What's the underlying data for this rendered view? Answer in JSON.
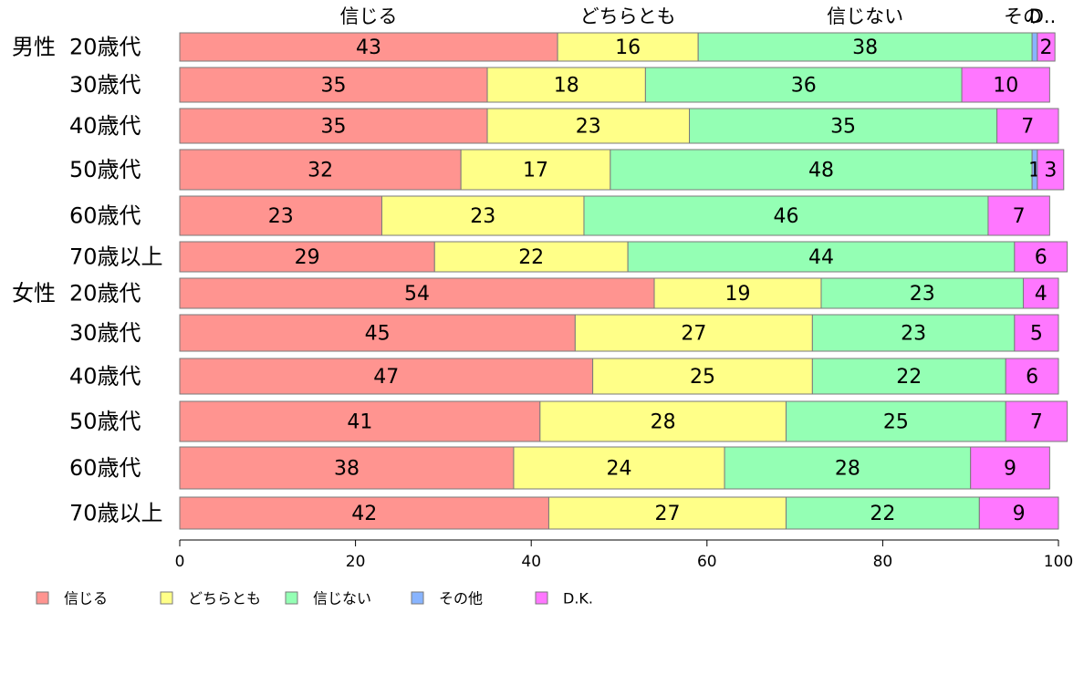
{
  "chart_data": {
    "type": "bar",
    "orientation": "horizontal",
    "stacked": true,
    "xlim": [
      0,
      100
    ],
    "x_ticks": [
      0,
      20,
      40,
      60,
      80,
      100
    ],
    "grid": false,
    "legend_position": "bottom-left",
    "categories": [
      {
        "group": "男性",
        "label": "20歳代"
      },
      {
        "group": "",
        "label": "30歳代"
      },
      {
        "group": "",
        "label": "40歳代"
      },
      {
        "group": "",
        "label": "50歳代"
      },
      {
        "group": "",
        "label": "60歳代"
      },
      {
        "group": "",
        "label": "70歳以上"
      },
      {
        "group": "女性",
        "label": "20歳代"
      },
      {
        "group": "",
        "label": "30歳代"
      },
      {
        "group": "",
        "label": "40歳代"
      },
      {
        "group": "",
        "label": "50歳代"
      },
      {
        "group": "",
        "label": "60歳代"
      },
      {
        "group": "",
        "label": "70歳以上"
      }
    ],
    "top_labels": [
      "信じる",
      "どちらとも",
      "信じない",
      "その",
      "D.."
    ],
    "series": [
      {
        "name": "信じる",
        "color": "#ff9490",
        "values": [
          43,
          35,
          35,
          32,
          23,
          29,
          54,
          45,
          47,
          41,
          38,
          42
        ]
      },
      {
        "name": "どちらとも",
        "color": "#ffff88",
        "values": [
          16,
          18,
          23,
          17,
          23,
          22,
          19,
          27,
          25,
          28,
          24,
          27
        ]
      },
      {
        "name": "信じない",
        "color": "#94ffb4",
        "values": [
          38,
          36,
          35,
          48,
          46,
          44,
          23,
          23,
          22,
          25,
          28,
          22
        ]
      },
      {
        "name": "その他",
        "color": "#88b4ff",
        "values": [
          0.6,
          0,
          0,
          0.6,
          0,
          0,
          0,
          0,
          0,
          0,
          0,
          0
        ],
        "data_labels": [
          "",
          "",
          "",
          "1",
          "",
          "",
          "",
          "",
          "",
          "",
          "",
          ""
        ]
      },
      {
        "name": "D.K.",
        "color": "#ff77ff",
        "values": [
          2,
          10,
          7,
          3,
          7,
          6,
          4,
          5,
          6,
          7,
          9,
          9
        ]
      }
    ]
  }
}
